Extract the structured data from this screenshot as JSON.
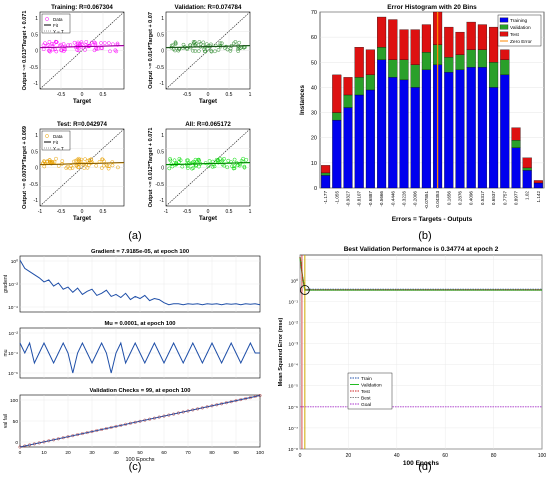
{
  "panels": {
    "a": {
      "label": "(a)"
    },
    "b": {
      "label": "(b)"
    },
    "c": {
      "label": "(c)"
    },
    "d": {
      "label": "(d)"
    }
  },
  "regression": {
    "plots": [
      {
        "key": "training",
        "title": "Training: R=0.067304",
        "ylabel": "Output ~= 0.013*Target + 0.071",
        "color": "#ff00ff",
        "legend": [
          "Data",
          "Fit",
          "Y = T"
        ],
        "xlabel": "Target"
      },
      {
        "key": "validation",
        "title": "Validation: R=0.074784",
        "ylabel": "Output ~= 0.014*Target + 0.07",
        "color": "#2e8b2e",
        "legend": [],
        "xlabel": "Target"
      },
      {
        "key": "test",
        "title": "Test: R=0.042974",
        "ylabel": "Output ~= 0.0079*Target + 0.069",
        "color": "#e8a000",
        "legend": [
          "Data",
          "Fit",
          "Y = T"
        ],
        "xlabel": "Target"
      },
      {
        "key": "all",
        "title": "All: R=0.065172",
        "ylabel": "Output ~= 0.012*Target + 0.071",
        "color": "#00dd00",
        "legend": [],
        "xlabel": "Target"
      }
    ],
    "xticks_top": [
      "-0.5",
      "0",
      "0.5"
    ],
    "xticks_bottom": [
      "-1",
      "-0.5",
      "0",
      "0.5"
    ],
    "xticks_bottom_right": [
      "-1",
      "-0.5",
      "0",
      "0.5",
      "1"
    ],
    "xticks_top_right": [
      "-0.5",
      "0",
      "0.5",
      "1"
    ],
    "yticks": [
      "1",
      "0.5",
      "0",
      "-0.5",
      "-1"
    ]
  },
  "chart_data": [
    {
      "type": "bar",
      "title": "Error Histogram with 20 Bins",
      "xlabel": "Errors = Targets - Outputs",
      "ylabel": "Instances",
      "ylim": [
        0,
        70
      ],
      "yticks": [
        "0",
        "10",
        "20",
        "30",
        "40",
        "50",
        "60",
        "70"
      ],
      "categories": [
        "-1.177",
        "-1.055",
        "-0.9327",
        "-0.8107",
        "-0.6887",
        "-0.5666",
        "-0.4446",
        "-0.3226",
        "-0.2006",
        "-0.07851",
        "0.04353",
        "0.1656",
        "0.2876",
        "0.4096",
        "0.5317",
        "0.6537",
        "0.7757",
        "0.8977",
        "1.02",
        "1.142"
      ],
      "series": [
        {
          "name": "Training",
          "color": "#0000ee",
          "values": [
            5,
            27,
            32,
            37,
            39,
            51,
            44,
            43,
            40,
            47,
            49,
            46,
            47,
            48,
            48,
            40,
            45,
            16,
            7,
            2
          ]
        },
        {
          "name": "Validation",
          "color": "#2aa02a",
          "values": [
            1,
            3,
            5,
            7,
            6,
            5,
            7,
            8,
            9,
            7,
            8,
            6,
            6,
            7,
            7,
            10,
            6,
            3,
            1,
            0
          ]
        },
        {
          "name": "Test",
          "color": "#dd1111",
          "values": [
            3,
            15,
            7,
            12,
            10,
            12,
            16,
            12,
            14,
            11,
            13,
            12,
            9,
            11,
            10,
            14,
            4,
            5,
            4,
            1
          ]
        }
      ],
      "legend": [
        "Training",
        "Validation",
        "Test",
        "Zero Error"
      ],
      "zero_error_label": "Zero Error",
      "zero_error_color": "#ff8800",
      "grid": true
    },
    {
      "type": "line",
      "title": "Gradient = 7.9185e-05, at epoch 100",
      "ylabel": "gradient",
      "yticks": [
        "10⁰",
        "10⁻²",
        "10⁻⁴"
      ],
      "log_scale": true,
      "ylim_log": [
        -4.8,
        0.6
      ],
      "x": [
        0,
        2,
        4,
        6,
        8,
        10,
        12,
        14,
        16,
        18,
        20,
        22,
        24,
        26,
        28,
        30,
        32,
        34,
        36,
        38,
        40,
        42,
        44,
        46,
        48,
        50,
        52,
        54,
        56,
        58,
        60,
        62,
        64,
        66,
        68,
        70,
        72,
        74,
        76,
        78,
        80,
        82,
        84,
        86,
        88,
        90,
        92,
        94,
        96,
        98,
        100
      ],
      "values_log10": [
        0.2,
        -0.6,
        -0.9,
        -1.2,
        -1.5,
        -1.9,
        -1.7,
        -2.3,
        -2.0,
        -2.6,
        -2.4,
        -2.9,
        -2.5,
        -3.1,
        -2.8,
        -2.6,
        -3.2,
        -3.0,
        -2.7,
        -3.3,
        -3.1,
        -3.4,
        -3.0,
        -3.6,
        -3.3,
        -3.5,
        -3.2,
        -3.7,
        -3.5,
        -3.6,
        -3.9,
        -4.1,
        -4.0,
        -4.0,
        -4.1,
        -4.0,
        -4.05,
        -4.0,
        -4.1,
        -4.0,
        -4.05,
        -4.0,
        -4.1,
        -4.0,
        -4.05,
        -4.0,
        -4.1,
        -4.0,
        -4.05,
        -4.0,
        -4.1
      ],
      "color": "#1f4fa8"
    },
    {
      "type": "line",
      "title": "Mu = 0.0001, at epoch 100",
      "ylabel": "mu",
      "yticks": [
        "10⁻²",
        "10⁻⁴",
        "10⁻⁶"
      ],
      "log_scale": true,
      "ylim_log": [
        -6.5,
        -1.5
      ],
      "x": [
        0,
        2,
        4,
        6,
        8,
        10,
        12,
        14,
        16,
        18,
        20,
        22,
        24,
        26,
        28,
        30,
        32,
        34,
        36,
        38,
        40,
        42,
        44,
        46,
        48,
        50,
        52,
        54,
        56,
        58,
        60,
        62,
        64,
        66,
        68,
        70,
        72,
        74,
        76,
        78,
        80,
        82,
        84,
        86,
        88,
        90,
        92,
        94,
        96,
        98,
        100
      ],
      "values_log10": [
        -3,
        -4,
        -3,
        -5,
        -4,
        -3,
        -4,
        -5,
        -4,
        -3,
        -4,
        -6,
        -4,
        -3,
        -4,
        -5,
        -4,
        -3,
        -4,
        -6,
        -4,
        -3,
        -5,
        -4,
        -3,
        -4,
        -5,
        -4,
        -3,
        -4,
        -5,
        -4,
        -3,
        -4,
        -5,
        -4,
        -3,
        -4,
        -5,
        -4,
        -3,
        -4,
        -5,
        -4,
        -3,
        -4,
        -5,
        -4,
        -3,
        -4,
        -4
      ],
      "color": "#1f4fa8"
    },
    {
      "type": "line",
      "title": "Validation Checks = 99, at epoch 100",
      "ylabel": "val fail",
      "xlabel": "100 Epochs",
      "ylim": [
        0,
        100
      ],
      "yticks": [
        "100",
        "50",
        "0"
      ],
      "xticks": [
        "0",
        "10",
        "20",
        "30",
        "40",
        "50",
        "60",
        "70",
        "80",
        "90",
        "100"
      ],
      "x": [
        0,
        100
      ],
      "values": [
        0,
        99
      ],
      "color": "#1f4fa8"
    },
    {
      "type": "line",
      "title": "Best Validation Performance is 0.34774 at epoch 2",
      "ylabel": "Mean Squared Error  (mse)",
      "xlabel": "100 Epochs",
      "log_scale": true,
      "ylim_log": [
        -8,
        1.2
      ],
      "yticks": [
        "10⁰",
        "10⁻²",
        "10⁻⁴",
        "10⁻⁶",
        "10⁻⁸"
      ],
      "yticks_minor": [
        "10⁻¹",
        "10⁻³",
        "10⁻⁵",
        "10⁻⁷"
      ],
      "xticks": [
        "0",
        "20",
        "40",
        "60",
        "80",
        "100"
      ],
      "series": [
        {
          "name": "Train",
          "color": "#1f4fa8",
          "style": "dotted",
          "final_log10": -0.42
        },
        {
          "name": "Validation",
          "color": "#22bb22",
          "style": "solid",
          "final_log10": -0.46
        },
        {
          "name": "Test",
          "color": "#cc2222",
          "style": "dotted",
          "final_log10": -0.45
        },
        {
          "name": "Best",
          "color": "#888888",
          "style": "dotted",
          "final_log10": -0.46
        },
        {
          "name": "Goal",
          "color": "#aa33cc",
          "style": "dotted",
          "final_log10": -6.0
        }
      ],
      "best_epoch": 2,
      "best_value": 0.34774
    }
  ]
}
